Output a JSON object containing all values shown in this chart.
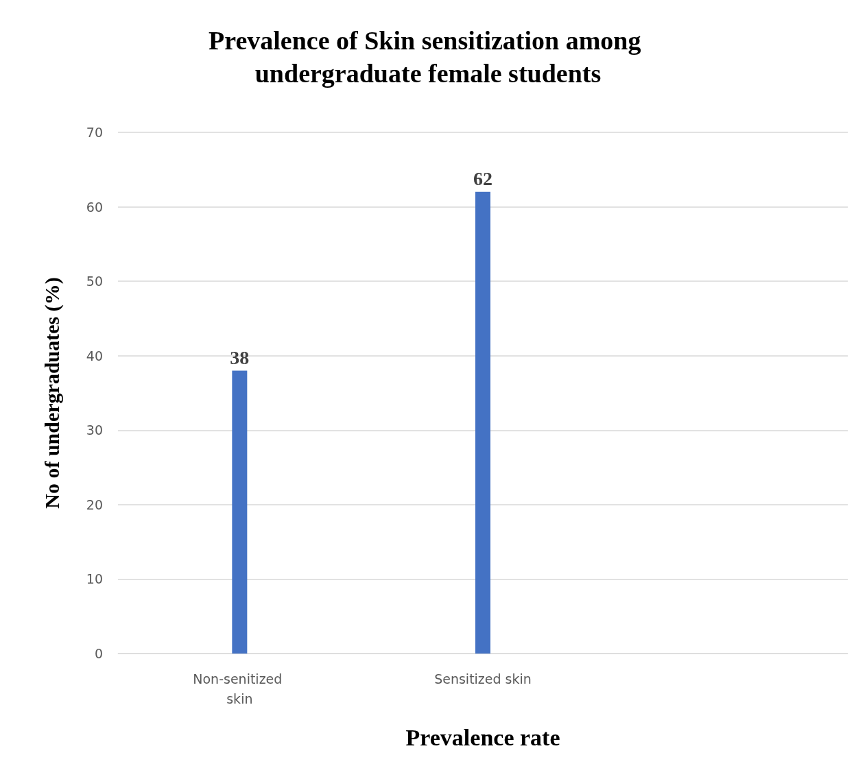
{
  "chart_data": {
    "type": "bar",
    "title": "Prevalence of Skin sensitization among undergraduate female students",
    "xlabel": "Prevalence rate",
    "ylabel": "No of undergraduates (%)",
    "categories": [
      "Non-senitized skin",
      "Sensitized skin",
      null
    ],
    "values": [
      38,
      62,
      null
    ],
    "color": "#4472c4",
    "ylim": [
      0,
      70
    ],
    "yticks": [
      0,
      10,
      20,
      30,
      40,
      50,
      60,
      70
    ],
    "grid": "y",
    "data_labels": true
  }
}
